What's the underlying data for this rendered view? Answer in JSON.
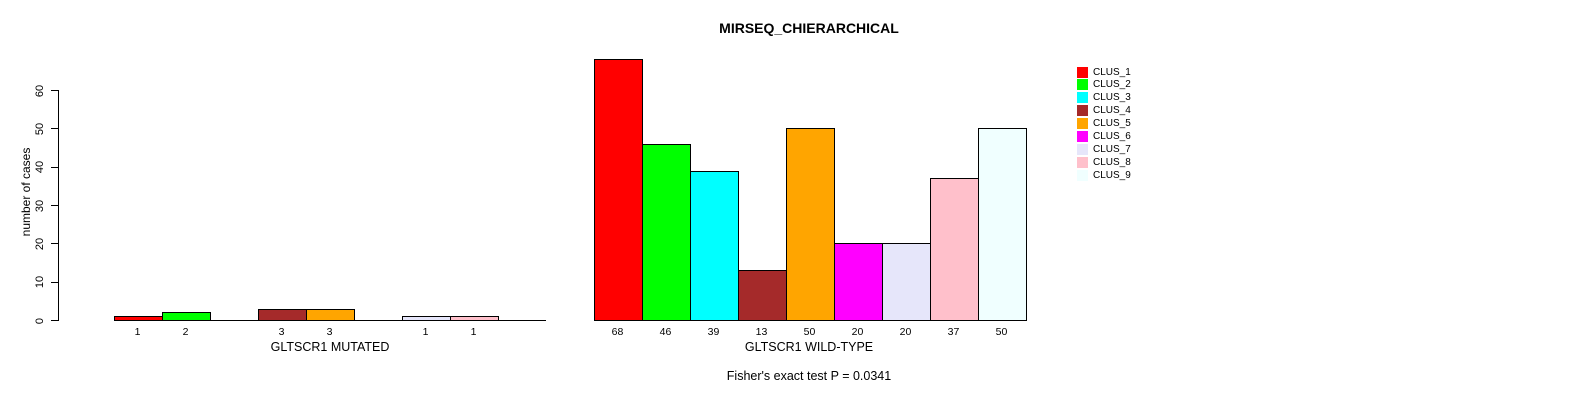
{
  "page": {
    "background": "#ffffff",
    "text_color": "#000000"
  },
  "chart_data": {
    "type": "bar",
    "title": "MIRSEQ_CHIERARCHICAL",
    "ylabel": "number of cases",
    "ylim": [
      0,
      60
    ],
    "yticks": [
      0,
      10,
      20,
      30,
      40,
      50,
      60
    ],
    "grid": false,
    "bar_outline_color": "#000000",
    "legend_position": "right",
    "legend": {
      "items": [
        {
          "label": "CLUS_1",
          "color": "#ff0000"
        },
        {
          "label": "CLUS_2",
          "color": "#00ff00"
        },
        {
          "label": "CLUS_3",
          "color": "#00ffff"
        },
        {
          "label": "CLUS_4",
          "color": "#a52a2a"
        },
        {
          "label": "CLUS_5",
          "color": "#ffa500"
        },
        {
          "label": "CLUS_6",
          "color": "#ff00ff"
        },
        {
          "label": "CLUS_7",
          "color": "#e6e6fa"
        },
        {
          "label": "CLUS_8",
          "color": "#ffc0cb"
        },
        {
          "label": "CLUS_9",
          "color": "#f0ffff"
        }
      ]
    },
    "panels": [
      {
        "xlabel": "GLTSCR1 MUTATED",
        "categories": [
          "CLUS_1",
          "CLUS_2",
          "CLUS_3",
          "CLUS_4",
          "CLUS_5",
          "CLUS_6",
          "CLUS_7",
          "CLUS_8",
          "CLUS_9"
        ],
        "values": [
          1,
          2,
          0,
          3,
          3,
          0,
          1,
          1,
          0
        ],
        "bar_labels": [
          "1",
          "2",
          "",
          "3",
          "3",
          "",
          "1",
          "1",
          ""
        ]
      },
      {
        "xlabel": "GLTSCR1 WILD-TYPE",
        "categories": [
          "CLUS_1",
          "CLUS_2",
          "CLUS_3",
          "CLUS_4",
          "CLUS_5",
          "CLUS_6",
          "CLUS_7",
          "CLUS_8",
          "CLUS_9"
        ],
        "values": [
          68,
          46,
          39,
          13,
          50,
          20,
          20,
          37,
          50
        ],
        "bar_labels": [
          "68",
          "46",
          "39",
          "13",
          "50",
          "20",
          "20",
          "37",
          "50"
        ]
      }
    ],
    "annotation": "Fisher's exact test P = 0.0341"
  }
}
